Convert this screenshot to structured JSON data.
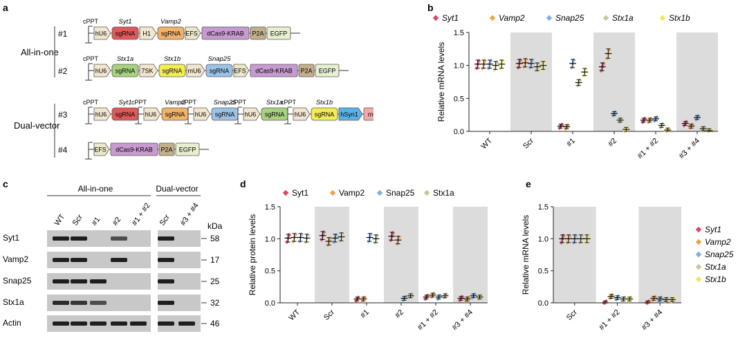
{
  "panel_labels": {
    "a": "a",
    "b": "b",
    "c": "c",
    "d": "d",
    "e": "e"
  },
  "colors": {
    "syt1": "#d9485f",
    "vamp2": "#f0a24a",
    "snap25": "#7fb0e0",
    "stx1a": "#c9c79a",
    "stx1b": "#f3e65a",
    "hu6": "#f2e6cf",
    "sgRNA_red": "#e0595a",
    "sgRNA_orange": "#f1b26a",
    "sgRNA_yellow": "#f4ec55",
    "sgRNA_blue": "#9cc2e8",
    "sgRNA_green": "#a8d27f",
    "dcas9": "#c79bd0",
    "p2a": "#c3b08b",
    "egfp": "#e6f0cf",
    "efs": "#ece8c9",
    "hsyn1": "#57b3e8",
    "mcherry": "#f3a9a9",
    "shade": "#dcdcdc"
  },
  "panel_a": {
    "group_allinone": "All-in-one",
    "group_dual": "Dual-vector",
    "cppt": "cPPT",
    "constructs": [
      {
        "id": "#1",
        "labels_above": [
          "Syt1",
          "Vamp2"
        ],
        "elements": [
          "hU6",
          "sgRNA",
          "H1",
          "sgRNA",
          "EFS",
          "dCas9-KRAB",
          "P2A",
          "EGFP"
        ]
      },
      {
        "id": "#2",
        "labels_above": [
          "Stx1a",
          "Stx1b",
          "Snap25"
        ],
        "elements": [
          "hU6",
          "sgRNA",
          "7SK",
          "sgRNA",
          "mU6",
          "sgRNA",
          "EFS",
          "dCas9-KRAB",
          "P2A",
          "EGFP"
        ]
      },
      {
        "id": "#3",
        "labels_above": [
          "Syt1",
          "Vamp2",
          "Snap25",
          "Stx1a",
          "Stx1b"
        ],
        "elements": [
          "hU6",
          "sgRNA",
          "hU6",
          "sgRNA",
          "hU6",
          "sgRNA",
          "hU6",
          "sgRNA",
          "hU6",
          "sgRNA",
          "hSyn1",
          "mCherry"
        ]
      },
      {
        "id": "#4",
        "labels_above": [],
        "elements": [
          "EFS",
          "dCas9-KRAB",
          "P2A",
          "EGFP"
        ]
      }
    ]
  },
  "panel_c": {
    "group_allinone": "All-in-one",
    "group_dual": "Dual-vector",
    "lanes": [
      "WT",
      "Scr",
      "#1",
      "#2",
      "#1 + #2",
      "Scr",
      "#3 + #4"
    ],
    "kda_label": "kDa",
    "rows": [
      {
        "protein": "Syt1",
        "kda": "58"
      },
      {
        "protein": "Vamp2",
        "kda": "17"
      },
      {
        "protein": "Snap25",
        "kda": "25"
      },
      {
        "protein": "Stx1a",
        "kda": "32"
      },
      {
        "protein": "Actin",
        "kda": "46"
      }
    ]
  },
  "chart_data": [
    {
      "panel": "b",
      "type": "scatter",
      "ylabel": "Relative mRNA levels",
      "ylim": [
        0,
        1.5
      ],
      "yticks": [
        "0.0",
        "0.5",
        "1.0",
        "1.5"
      ],
      "categories": [
        "WT",
        "Scr",
        "#1",
        "#2",
        "#1 + #2",
        "#3 + #4"
      ],
      "shaded": [
        1,
        3,
        5
      ],
      "legend": [
        "Syt1",
        "Vamp2",
        "Snap25",
        "Stx1a",
        "Stx1b"
      ],
      "series": [
        {
          "name": "Syt1",
          "means": [
            1.02,
            1.03,
            0.08,
            0.98,
            0.17,
            0.12
          ]
        },
        {
          "name": "Vamp2",
          "means": [
            1.02,
            1.04,
            0.07,
            1.18,
            0.17,
            0.08
          ]
        },
        {
          "name": "Snap25",
          "means": [
            1.02,
            1.03,
            1.03,
            0.27,
            0.19,
            0.21
          ]
        },
        {
          "name": "Stx1a",
          "means": [
            1.0,
            0.98,
            0.74,
            0.17,
            0.09,
            0.04
          ]
        },
        {
          "name": "Stx1b",
          "means": [
            1.02,
            1.0,
            0.9,
            0.03,
            0.02,
            0.01
          ]
        }
      ]
    },
    {
      "panel": "d",
      "type": "scatter",
      "ylabel": "Relative protein levels",
      "ylim": [
        0,
        1.5
      ],
      "yticks": [
        "0.0",
        "0.5",
        "1.0",
        "1.5"
      ],
      "categories": [
        "WT",
        "Scr",
        "#1",
        "#2",
        "#1 + #2",
        "#3 + #4"
      ],
      "shaded": [
        1,
        3,
        5
      ],
      "legend": [
        "Syt1",
        "Vamp2",
        "Snap25",
        "Stx1a"
      ],
      "series": [
        {
          "name": "Syt1",
          "means": [
            1.01,
            1.05,
            0.06,
            1.04,
            0.09,
            0.07
          ]
        },
        {
          "name": "Vamp2",
          "means": [
            1.02,
            0.96,
            0.06,
            0.98,
            0.12,
            0.06
          ]
        },
        {
          "name": "Snap25",
          "means": [
            1.02,
            1.01,
            1.02,
            0.07,
            0.09,
            0.11
          ]
        },
        {
          "name": "Stx1a",
          "means": [
            1.01,
            1.03,
            1.0,
            0.11,
            0.11,
            0.09
          ]
        }
      ]
    },
    {
      "panel": "e",
      "type": "scatter",
      "ylabel": "Relative mRNA levels",
      "ylim": [
        0,
        1.5
      ],
      "yticks": [
        "0.0",
        "0.5",
        "1.0",
        "1.5"
      ],
      "categories": [
        "Scr",
        "#1 + #2",
        "#3 + #4"
      ],
      "shaded": [
        0,
        2
      ],
      "legend": [
        "Syt1",
        "Vamp2",
        "Snap25",
        "Stx1a",
        "Stx1b"
      ],
      "series": [
        {
          "name": "Syt1",
          "means": [
            1.0,
            0.0,
            0.0
          ]
        },
        {
          "name": "Vamp2",
          "means": [
            1.0,
            0.1,
            0.07
          ]
        },
        {
          "name": "Snap25",
          "means": [
            1.0,
            0.08,
            0.06
          ]
        },
        {
          "name": "Stx1a",
          "means": [
            1.0,
            0.06,
            0.05
          ]
        },
        {
          "name": "Stx1b",
          "means": [
            1.0,
            0.06,
            0.05
          ]
        }
      ]
    }
  ]
}
